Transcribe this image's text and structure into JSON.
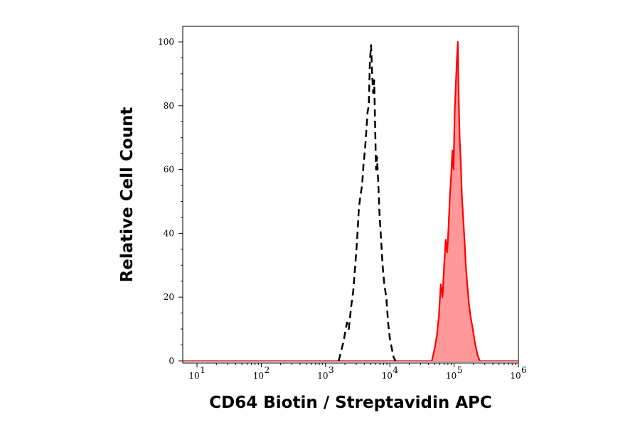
{
  "chart_data": {
    "type": "area",
    "xlabel": "CD64 Biotin / Streptavidin APC",
    "ylabel": "Relative Cell Count",
    "x_scale": "log",
    "xlim": [
      6,
      1000000
    ],
    "ylim": [
      0,
      100
    ],
    "x_ticks": [
      {
        "base": "10",
        "exp": "1",
        "value": 10
      },
      {
        "base": "10",
        "exp": "2",
        "value": 100
      },
      {
        "base": "10",
        "exp": "3",
        "value": 1000
      },
      {
        "base": "10",
        "exp": "4",
        "value": 10000
      },
      {
        "base": "10",
        "exp": "5",
        "value": 100000
      },
      {
        "base": "10",
        "exp": "6",
        "value": 1000000
      }
    ],
    "y_ticks": [
      {
        "label": "0",
        "value": 0
      },
      {
        "label": "20",
        "value": 20
      },
      {
        "label": "40",
        "value": 40
      },
      {
        "label": "60",
        "value": 60
      },
      {
        "label": "80",
        "value": 80
      },
      {
        "label": "100",
        "value": 100
      }
    ],
    "grid": false,
    "series": [
      {
        "style": "dashed-line",
        "color": "#000000",
        "x": [
          1600,
          1900,
          2150,
          2300,
          2500,
          2700,
          2900,
          3100,
          3300,
          3500,
          3700,
          3900,
          4100,
          4300,
          4500,
          4700,
          4900,
          5100,
          5300,
          5500,
          5700,
          5900,
          6100,
          6300,
          6600,
          6900,
          7300,
          7700,
          8200,
          8800,
          9400,
          10000,
          10700,
          11500,
          12300
        ],
        "y": [
          0,
          6,
          12,
          10,
          17,
          22,
          30,
          38,
          48,
          52,
          55,
          62,
          66,
          72,
          78,
          80,
          94,
          99,
          90,
          84,
          88,
          74,
          60,
          64,
          56,
          46,
          38,
          30,
          24,
          20,
          12,
          7,
          4,
          1,
          0
        ]
      },
      {
        "style": "filled-area",
        "color": "#ff0000",
        "fill": "#ff9999",
        "x": [
          45000,
          50000,
          54000,
          58000,
          62000,
          66000,
          70000,
          74000,
          78000,
          82000,
          86000,
          90000,
          94000,
          98000,
          102000,
          106000,
          110000,
          114000,
          118000,
          122000,
          127000,
          132000,
          138000,
          145000,
          152000,
          160000,
          170000,
          180000,
          195000,
          210000,
          230000,
          250000
        ],
        "y": [
          0,
          4,
          8,
          14,
          24,
          20,
          30,
          38,
          34,
          42,
          52,
          58,
          66,
          60,
          78,
          86,
          94,
          100,
          82,
          70,
          62,
          52,
          45,
          38,
          30,
          24,
          18,
          14,
          10,
          6,
          2,
          0
        ]
      }
    ]
  }
}
